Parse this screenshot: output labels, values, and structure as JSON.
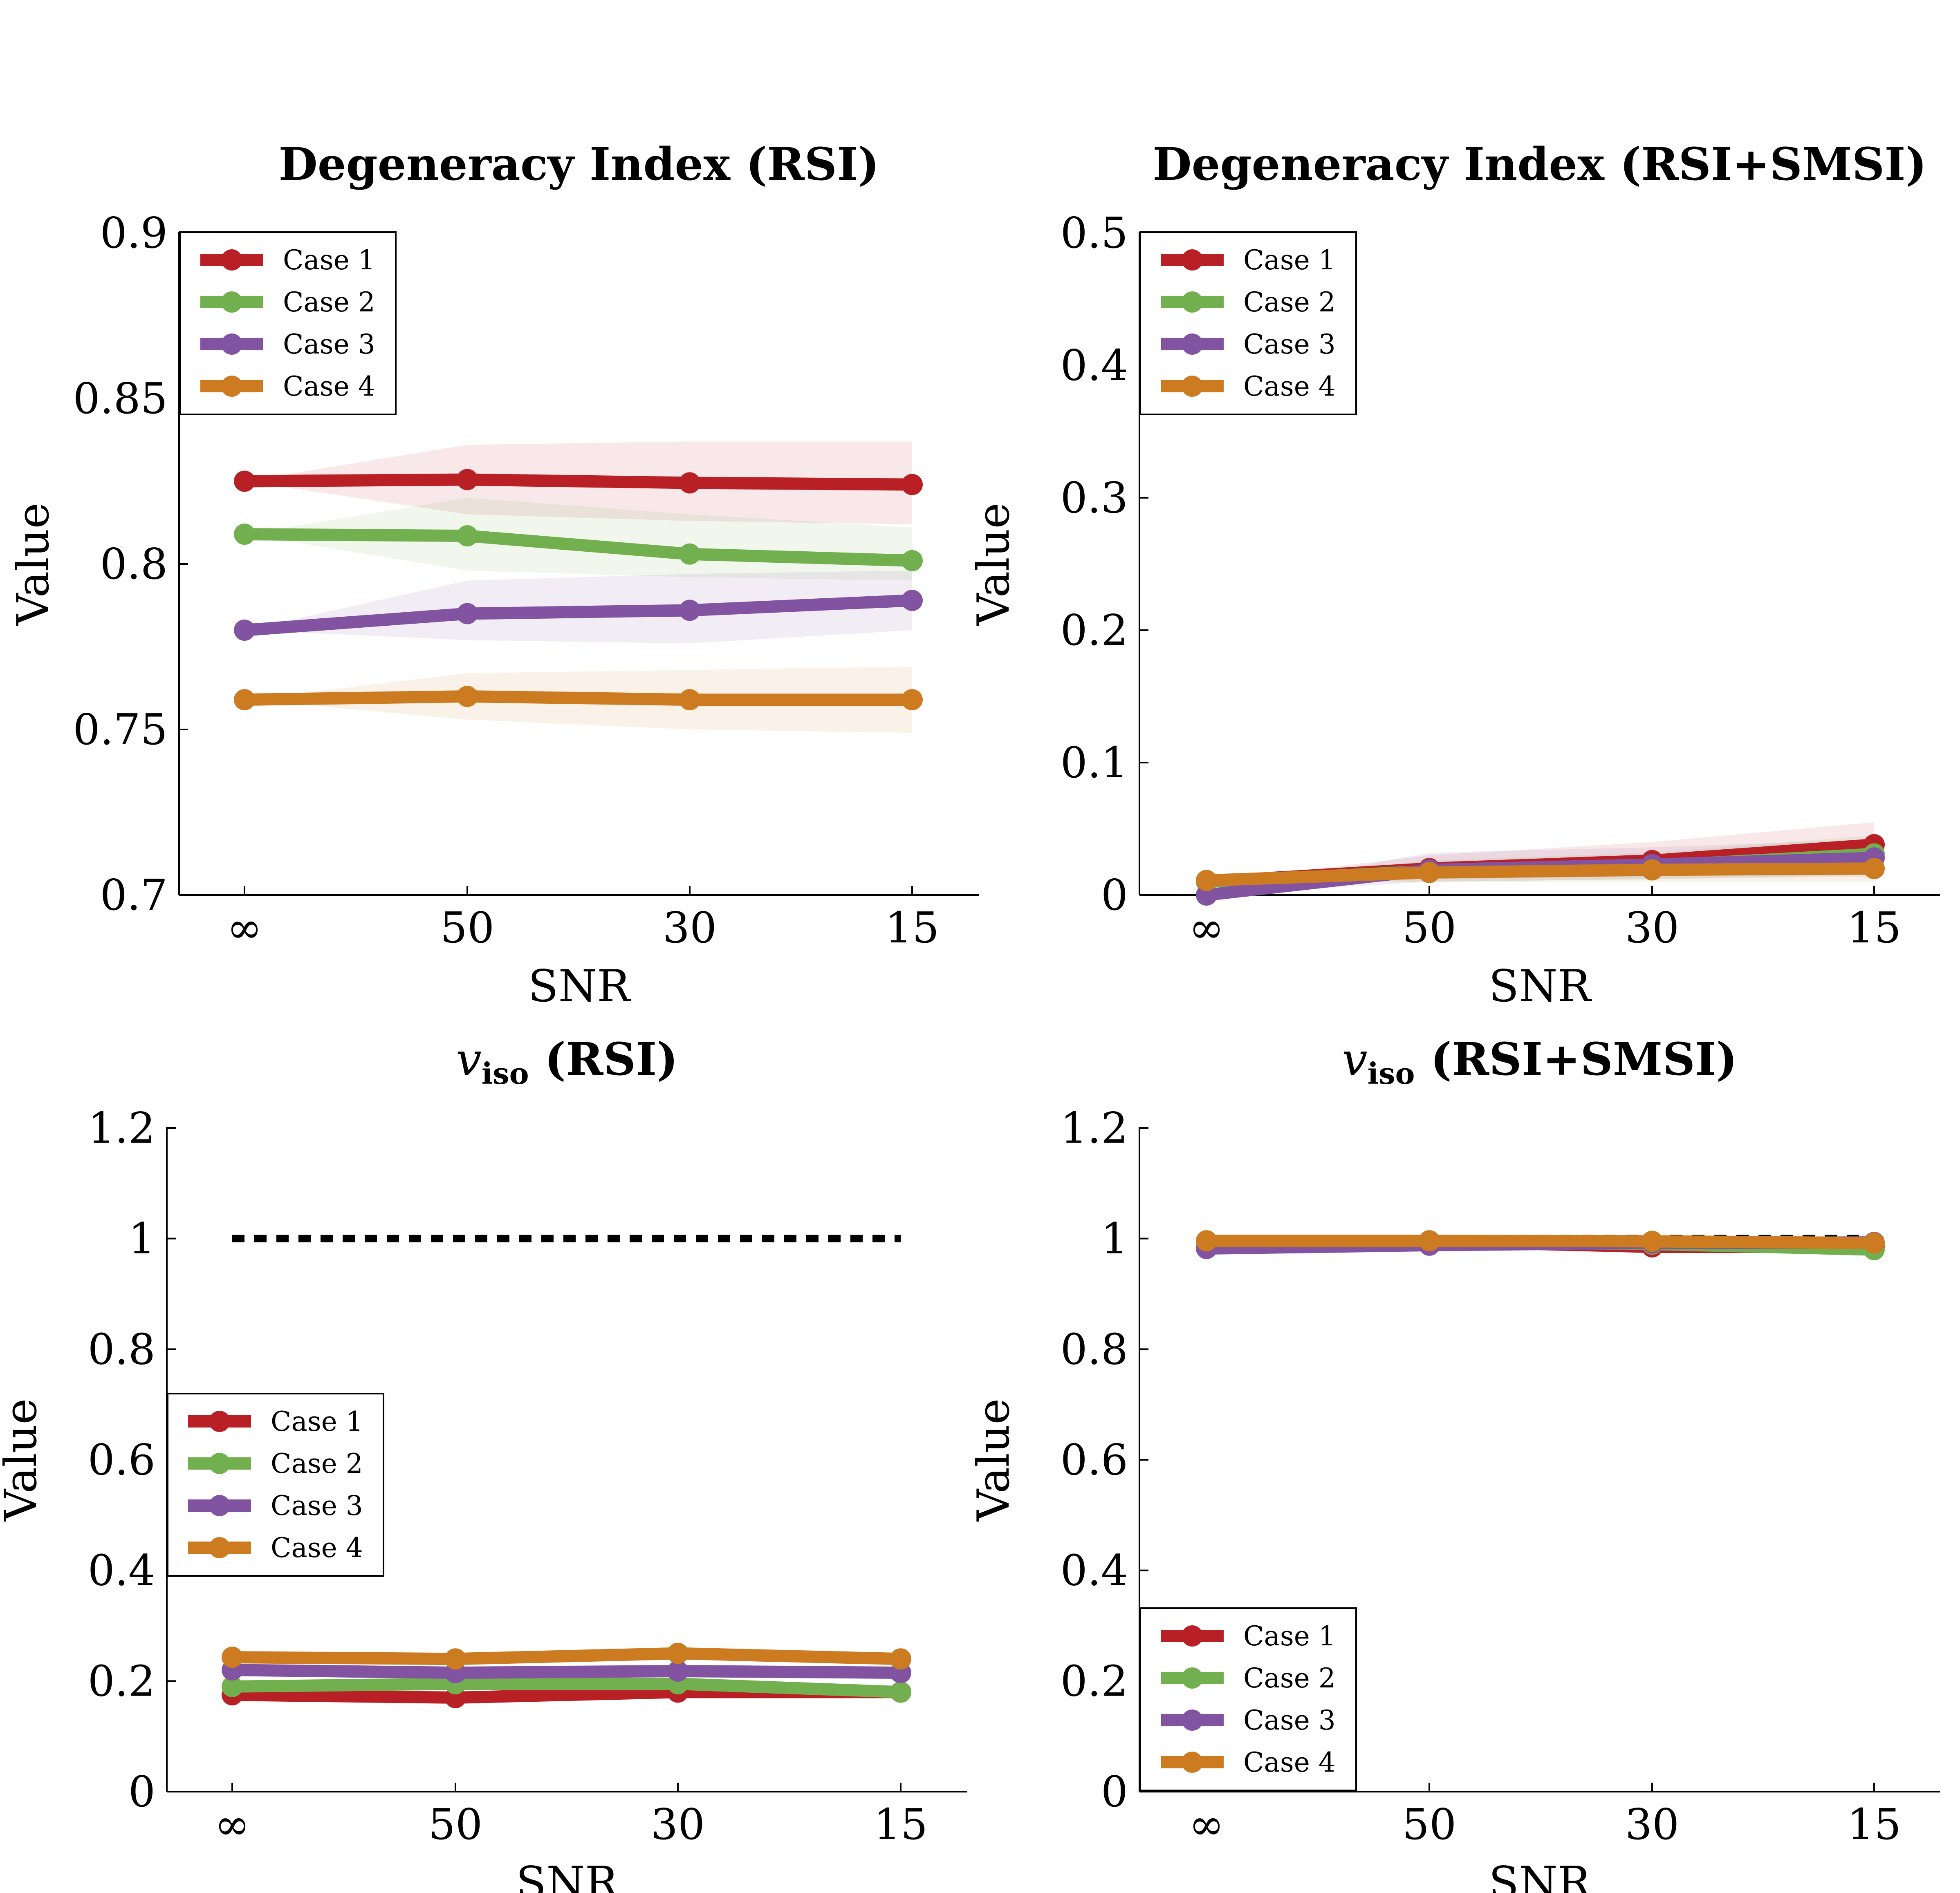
{
  "colors": {
    "case1": "#B82025",
    "case2": "#72AF4F",
    "case3": "#8153A1",
    "case4": "#CC7B21",
    "reference": "#000000"
  },
  "chart_data": [
    {
      "type": "line",
      "title": "Degeneracy Index (RSI)",
      "xlabel": "SNR",
      "ylabel": "Value",
      "categories": [
        "∞",
        "50",
        "30",
        "15"
      ],
      "ylim": [
        0.7,
        0.9
      ],
      "yticks": [
        "0.7",
        "0.75",
        "0.8",
        "0.85",
        "0.9"
      ],
      "ytick_values": [
        0.7,
        0.75,
        0.8,
        0.85,
        0.9
      ],
      "legend_position": "top-left",
      "series": [
        {
          "name": "Case 1",
          "values": [
            0.825,
            0.8255,
            0.8245,
            0.824
          ],
          "band_low": [
            0.825,
            0.815,
            0.813,
            0.812
          ],
          "band_high": [
            0.825,
            0.836,
            0.837,
            0.837
          ]
        },
        {
          "name": "Case 2",
          "values": [
            0.809,
            0.8085,
            0.803,
            0.801
          ],
          "band_low": [
            0.809,
            0.798,
            0.796,
            0.795
          ],
          "band_high": [
            0.809,
            0.82,
            0.815,
            0.811
          ]
        },
        {
          "name": "Case 3",
          "values": [
            0.78,
            0.785,
            0.786,
            0.789
          ],
          "band_low": [
            0.78,
            0.777,
            0.776,
            0.78
          ],
          "band_high": [
            0.78,
            0.795,
            0.797,
            0.798
          ]
        },
        {
          "name": "Case 4",
          "values": [
            0.759,
            0.76,
            0.759,
            0.759
          ],
          "band_low": [
            0.759,
            0.753,
            0.75,
            0.749
          ],
          "band_high": [
            0.759,
            0.767,
            0.768,
            0.769
          ]
        }
      ]
    },
    {
      "type": "line",
      "title": "Degeneracy Index (RSI+SMSI)",
      "xlabel": "SNR",
      "ylabel": "Value",
      "categories": [
        "∞",
        "50",
        "30",
        "15"
      ],
      "ylim": [
        0,
        0.5
      ],
      "yticks": [
        "0",
        "0.1",
        "0.2",
        "0.3",
        "0.4",
        "0.5"
      ],
      "ytick_values": [
        0,
        0.1,
        0.2,
        0.3,
        0.4,
        0.5
      ],
      "legend_position": "top-left",
      "series": [
        {
          "name": "Case 1",
          "values": [
            0.01,
            0.02,
            0.026,
            0.038
          ],
          "band_low": [
            0.01,
            0.012,
            0.014,
            0.018
          ],
          "band_high": [
            0.01,
            0.03,
            0.04,
            0.055
          ]
        },
        {
          "name": "Case 2",
          "values": [
            0.01,
            0.018,
            0.022,
            0.031
          ],
          "band_low": [
            0.01,
            0.01,
            0.012,
            0.015
          ],
          "band_high": [
            0.01,
            0.026,
            0.032,
            0.045
          ]
        },
        {
          "name": "Case 3",
          "values": [
            0.0,
            0.019,
            0.023,
            0.028
          ],
          "band_low": [
            0.0,
            0.01,
            0.012,
            0.014
          ],
          "band_high": [
            0.0,
            0.032,
            0.036,
            0.042
          ]
        },
        {
          "name": "Case 4",
          "values": [
            0.011,
            0.017,
            0.019,
            0.02
          ],
          "band_low": [
            0.011,
            0.01,
            0.01,
            0.01
          ],
          "band_high": [
            0.011,
            0.024,
            0.027,
            0.03
          ]
        }
      ]
    },
    {
      "type": "line",
      "title_var": "v",
      "title_sub": "iso",
      "title_rest": " (RSI)",
      "xlabel": "SNR",
      "ylabel": "Value",
      "categories": [
        "∞",
        "50",
        "30",
        "15"
      ],
      "ylim": [
        0,
        1.2
      ],
      "yticks": [
        "0",
        "0.2",
        "0.4",
        "0.6",
        "0.8",
        "1",
        "1.2"
      ],
      "ytick_values": [
        0,
        0.2,
        0.4,
        0.6,
        0.8,
        1.0,
        1.2
      ],
      "reference_line": 1.0,
      "legend_position": "center-left",
      "series": [
        {
          "name": "Case 1",
          "values": [
            0.175,
            0.17,
            0.18,
            0.18
          ]
        },
        {
          "name": "Case 2",
          "values": [
            0.19,
            0.195,
            0.195,
            0.18
          ]
        },
        {
          "name": "Case 3",
          "values": [
            0.22,
            0.215,
            0.218,
            0.215
          ]
        },
        {
          "name": "Case 4",
          "values": [
            0.243,
            0.24,
            0.25,
            0.24
          ]
        }
      ]
    },
    {
      "type": "line",
      "title_var": "v",
      "title_sub": "iso",
      "title_rest": " (RSI+SMSI)",
      "xlabel": "SNR",
      "ylabel": "Value",
      "categories": [
        "∞",
        "50",
        "30",
        "15"
      ],
      "ylim": [
        0,
        1.2
      ],
      "yticks": [
        "0",
        "0.2",
        "0.4",
        "0.6",
        "0.8",
        "1",
        "1.2"
      ],
      "ytick_values": [
        0,
        0.2,
        0.4,
        0.6,
        0.8,
        1.0,
        1.2
      ],
      "reference_line": 1.0,
      "legend_position": "bottom-left",
      "series": [
        {
          "name": "Case 1",
          "values": [
            0.995,
            0.995,
            0.985,
            0.985
          ]
        },
        {
          "name": "Case 2",
          "values": [
            0.993,
            0.993,
            0.99,
            0.98
          ]
        },
        {
          "name": "Case 3",
          "values": [
            0.982,
            0.988,
            0.992,
            0.993
          ]
        },
        {
          "name": "Case 4",
          "values": [
            0.996,
            0.996,
            0.995,
            0.992
          ]
        }
      ]
    }
  ]
}
